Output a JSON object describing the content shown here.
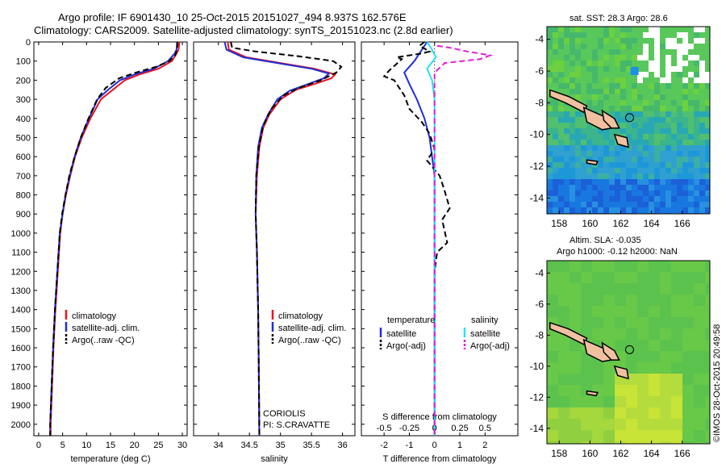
{
  "header": {
    "line1": "Argo profile: IF 6901430_10 25-Oct-2015 20151027_494 8.937S 162.576E",
    "line2": "Climatology: CARS2009. Satellite-adjusted climatology: synTS_20151023.nc (2.8d earlier)"
  },
  "stamp": "©IMOS 28-Oct-2015 20:49:58",
  "colors": {
    "climatology": "#e8141e",
    "satellite": "#1f2ed6",
    "argo": "#000000",
    "sat_salinity": "#28e0f0",
    "argo_salinity_adj": "#e020d8"
  },
  "chart_data": [
    {
      "type": "line",
      "xlabel": "temperature (deg C)",
      "ylabel": "",
      "xlim": [
        -1,
        31
      ],
      "ylim": [
        2060,
        0
      ],
      "xticks": [
        "0",
        "5",
        "10",
        "15",
        "20",
        "25",
        "30"
      ],
      "xtick_values": [
        0,
        5,
        10,
        15,
        20,
        25,
        30
      ],
      "yticks": [
        "0",
        "100",
        "200",
        "300",
        "400",
        "500",
        "600",
        "700",
        "800",
        "900",
        "1000",
        "1100",
        "1200",
        "1300",
        "1400",
        "1500",
        "1600",
        "1700",
        "1800",
        "1900",
        "2000"
      ],
      "ytick_values": [
        0,
        100,
        200,
        300,
        400,
        500,
        600,
        700,
        800,
        900,
        1000,
        1100,
        1200,
        1300,
        1400,
        1500,
        1600,
        1700,
        1800,
        1900,
        2000
      ],
      "legend": [
        "climatology",
        "satellite-adj. clim.",
        "Argo(..raw -QC)"
      ],
      "legend_position": "lower-center",
      "series": [
        {
          "name": "climatology",
          "style": "solid",
          "color": "#e8141e",
          "points": [
            [
              29.4,
              0
            ],
            [
              29.2,
              40
            ],
            [
              28.8,
              60
            ],
            [
              27.8,
              100
            ],
            [
              25.0,
              140
            ],
            [
              21.0,
              170
            ],
            [
              18.0,
              200
            ],
            [
              15.5,
              250
            ],
            [
              13.0,
              300
            ],
            [
              10.8,
              400
            ],
            [
              9.0,
              500
            ],
            [
              7.6,
              600
            ],
            [
              6.6,
              700
            ],
            [
              5.7,
              800
            ],
            [
              5.0,
              900
            ],
            [
              4.5,
              1000
            ],
            [
              4.0,
              1200
            ],
            [
              3.5,
              1400
            ],
            [
              3.1,
              1600
            ],
            [
              2.8,
              1800
            ],
            [
              2.5,
              2000
            ],
            [
              2.5,
              2060
            ]
          ]
        },
        {
          "name": "satellite-adj. clim.",
          "style": "solid",
          "color": "#1f2ed6",
          "points": [
            [
              28.9,
              0
            ],
            [
              28.8,
              40
            ],
            [
              28.4,
              60
            ],
            [
              27.0,
              100
            ],
            [
              24.0,
              140
            ],
            [
              20.0,
              170
            ],
            [
              17.0,
              200
            ],
            [
              14.5,
              250
            ],
            [
              12.3,
              300
            ],
            [
              10.5,
              400
            ],
            [
              8.8,
              500
            ],
            [
              7.5,
              600
            ],
            [
              6.5,
              700
            ],
            [
              5.6,
              800
            ],
            [
              5.0,
              900
            ],
            [
              4.4,
              1000
            ],
            [
              3.9,
              1200
            ],
            [
              3.4,
              1400
            ],
            [
              3.0,
              1600
            ],
            [
              2.7,
              1800
            ],
            [
              2.4,
              2000
            ],
            [
              2.4,
              2060
            ]
          ]
        },
        {
          "name": "Argo(..raw -QC)",
          "style": "dashed",
          "color": "#000000",
          "points": [
            [
              29.0,
              0
            ],
            [
              28.9,
              40
            ],
            [
              28.5,
              70
            ],
            [
              27.3,
              100
            ],
            [
              24.5,
              130
            ],
            [
              20.3,
              160
            ],
            [
              16.8,
              190
            ],
            [
              14.0,
              240
            ],
            [
              12.2,
              300
            ],
            [
              10.4,
              400
            ],
            [
              8.8,
              500
            ],
            [
              7.5,
              600
            ],
            [
              6.4,
              700
            ],
            [
              5.6,
              800
            ],
            [
              4.9,
              900
            ],
            [
              4.4,
              1000
            ],
            [
              3.9,
              1200
            ],
            [
              3.4,
              1400
            ],
            [
              3.0,
              1600
            ],
            [
              2.7,
              1800
            ],
            [
              2.4,
              2000
            ],
            [
              2.4,
              2060
            ]
          ]
        }
      ]
    },
    {
      "type": "line",
      "xlabel": "salinity",
      "xlim": [
        33.6,
        36.2
      ],
      "ylim": [
        2060,
        0
      ],
      "xticks": [
        "34",
        "34.5",
        "35",
        "35.5",
        "36"
      ],
      "xtick_values": [
        34,
        34.5,
        35,
        35.5,
        36
      ],
      "legend": [
        "climatology",
        "satellite-adj. clim.",
        "Argo(..raw -QC)"
      ],
      "legend_position": "lower-center",
      "annotations": [
        "CORIOLIS",
        "PI: S.CRAVATTE"
      ],
      "series": [
        {
          "name": "climatology",
          "style": "solid",
          "color": "#e8141e",
          "points": [
            [
              34.15,
              0
            ],
            [
              34.17,
              40
            ],
            [
              34.45,
              80
            ],
            [
              35.0,
              110
            ],
            [
              35.55,
              140
            ],
            [
              35.88,
              170
            ],
            [
              35.82,
              190
            ],
            [
              35.55,
              220
            ],
            [
              35.25,
              250
            ],
            [
              35.0,
              300
            ],
            [
              34.82,
              380
            ],
            [
              34.72,
              450
            ],
            [
              34.66,
              550
            ],
            [
              34.62,
              700
            ],
            [
              34.6,
              900
            ],
            [
              34.62,
              1100
            ],
            [
              34.64,
              1400
            ],
            [
              34.65,
              1700
            ],
            [
              34.66,
              2060
            ]
          ]
        },
        {
          "name": "satellite-adj. clim.",
          "style": "solid",
          "color": "#1f2ed6",
          "points": [
            [
              34.1,
              0
            ],
            [
              34.13,
              40
            ],
            [
              34.4,
              80
            ],
            [
              34.95,
              110
            ],
            [
              35.5,
              140
            ],
            [
              35.78,
              165
            ],
            [
              35.7,
              190
            ],
            [
              35.45,
              220
            ],
            [
              35.15,
              255
            ],
            [
              34.95,
              300
            ],
            [
              34.8,
              380
            ],
            [
              34.7,
              450
            ],
            [
              34.64,
              550
            ],
            [
              34.61,
              700
            ],
            [
              34.6,
              900
            ],
            [
              34.62,
              1100
            ],
            [
              34.64,
              1400
            ],
            [
              34.65,
              1700
            ],
            [
              34.66,
              2060
            ]
          ]
        },
        {
          "name": "Argo(..raw -QC)",
          "style": "dashed",
          "color": "#000000",
          "points": [
            [
              34.2,
              0
            ],
            [
              34.22,
              30
            ],
            [
              34.6,
              50
            ],
            [
              35.3,
              75
            ],
            [
              35.85,
              100
            ],
            [
              35.98,
              130
            ],
            [
              35.9,
              160
            ],
            [
              35.65,
              200
            ],
            [
              35.3,
              240
            ],
            [
              35.05,
              280
            ],
            [
              34.85,
              350
            ],
            [
              34.72,
              440
            ],
            [
              34.65,
              550
            ],
            [
              34.61,
              700
            ],
            [
              34.6,
              900
            ],
            [
              34.62,
              1100
            ],
            [
              34.64,
              1400
            ],
            [
              34.65,
              1700
            ],
            [
              34.66,
              2060
            ]
          ]
        }
      ]
    },
    {
      "type": "line",
      "xlabel": "T difference from climatology",
      "xlabel_top": "S difference from climatology",
      "xlim": [
        -2.9,
        3.3
      ],
      "ylim": [
        2060,
        0
      ],
      "xticks": [
        "-2",
        "-1",
        "0",
        "1",
        "2"
      ],
      "xtick_values": [
        -2,
        -1,
        0,
        1,
        2
      ],
      "s_xticks": [
        "-0.5",
        "-0.25",
        "0",
        "0.25",
        "0.5"
      ],
      "s_xtick_values": [
        -0.5,
        -0.25,
        0,
        0.25,
        0.5
      ],
      "legend_headers": [
        "temperature",
        "salinity"
      ],
      "legend": [
        "satellite",
        "Argo(-adj)",
        "satellite",
        "Argo(-adj)"
      ],
      "legend_position": "lower-center",
      "series": [
        {
          "name": "satellite",
          "quantity": "temperature",
          "style": "solid",
          "color": "#1f2ed6",
          "points": [
            [
              -0.3,
              0
            ],
            [
              -0.5,
              40
            ],
            [
              -0.8,
              100
            ],
            [
              -1.2,
              160
            ],
            [
              -1.0,
              220
            ],
            [
              -0.7,
              300
            ],
            [
              -0.4,
              400
            ],
            [
              -0.2,
              500
            ],
            [
              -0.1,
              600
            ],
            [
              0.0,
              700
            ],
            [
              0.0,
              1000
            ],
            [
              0.0,
              2060
            ]
          ]
        },
        {
          "name": "Argo(-adj)",
          "quantity": "temperature",
          "style": "dashed",
          "color": "#000000",
          "points": [
            [
              -0.4,
              0
            ],
            [
              -0.6,
              20
            ],
            [
              -0.2,
              50
            ],
            [
              -0.5,
              60
            ],
            [
              -1.0,
              70
            ],
            [
              -1.5,
              80
            ],
            [
              -1.3,
              90
            ],
            [
              -1.8,
              150
            ],
            [
              -2.0,
              180
            ],
            [
              -1.6,
              200
            ],
            [
              -1.2,
              280
            ],
            [
              -1.0,
              350
            ],
            [
              -0.5,
              420
            ],
            [
              -0.2,
              480
            ],
            [
              0.0,
              560
            ],
            [
              -0.3,
              620
            ],
            [
              0.2,
              700
            ],
            [
              0.4,
              780
            ],
            [
              0.6,
              870
            ],
            [
              0.3,
              930
            ],
            [
              0.5,
              1050
            ],
            [
              0.1,
              1100
            ],
            [
              0.0,
              1200
            ],
            [
              0.0,
              2060
            ]
          ]
        },
        {
          "name": "satellite",
          "quantity": "salinity",
          "style": "solid",
          "color": "#28e0f0",
          "points": [
            [
              -0.3,
              0
            ],
            [
              -0.1,
              40
            ],
            [
              0.05,
              80
            ],
            [
              -0.3,
              140
            ],
            [
              -0.1,
              200
            ],
            [
              0.0,
              300
            ],
            [
              0.0,
              2060
            ]
          ]
        },
        {
          "name": "Argo(-adj)",
          "quantity": "salinity",
          "style": "dashed",
          "color": "#e020d8",
          "points": [
            [
              0.1,
              20
            ],
            [
              0.6,
              30
            ],
            [
              1.3,
              50
            ],
            [
              2.2,
              70
            ],
            [
              1.8,
              90
            ],
            [
              0.4,
              110
            ],
            [
              0.0,
              160
            ],
            [
              0.0,
              2060
            ]
          ]
        }
      ]
    },
    {
      "type": "heatmap",
      "title": "sat. SST: 28.3 Argo: 28.6",
      "xticks": [
        "158",
        "160",
        "162",
        "164",
        "166"
      ],
      "xtick_values": [
        158,
        160,
        162,
        164,
        166
      ],
      "yticks": [
        "-4",
        "-6",
        "-8",
        "-10",
        "-12",
        "-14"
      ],
      "ytick_values": [
        -4,
        -6,
        -8,
        -10,
        -12,
        -14
      ],
      "xlim": [
        157.2,
        167.8
      ],
      "ylim": [
        -15,
        -3.2
      ],
      "argo_position": [
        162.576,
        -8.937
      ]
    },
    {
      "type": "heatmap",
      "title": "Altim. SLA: -0.035",
      "subtitle": "Argo h1000: -0.12 h2000: NaN",
      "xticks": [
        "158",
        "160",
        "162",
        "164",
        "166"
      ],
      "xtick_values": [
        158,
        160,
        162,
        164,
        166
      ],
      "yticks": [
        "-4",
        "-6",
        "-8",
        "-10",
        "-12",
        "-14"
      ],
      "ytick_values": [
        -4,
        -6,
        -8,
        -10,
        -12,
        -14
      ],
      "xlim": [
        157.2,
        167.8
      ],
      "ylim": [
        -15,
        -3.2
      ],
      "argo_position": [
        162.576,
        -8.937
      ]
    }
  ]
}
